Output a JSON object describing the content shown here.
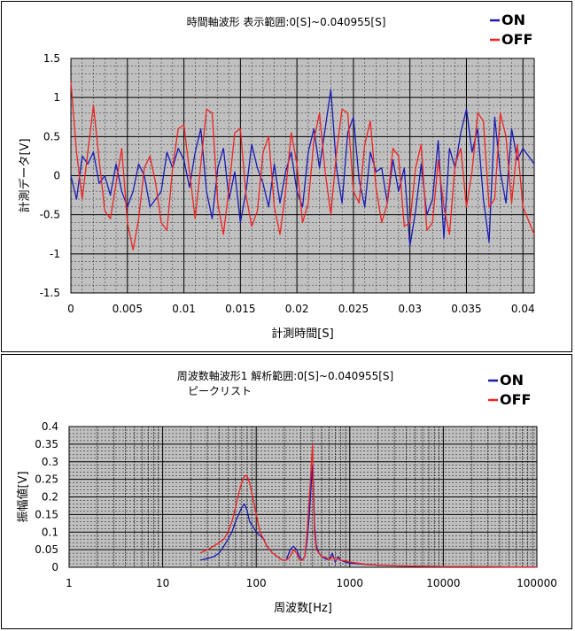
{
  "colors": {
    "on": "#1a1ab4",
    "off": "#ee2222",
    "plot_bg": "#c0c0c0",
    "grid_major": "#000000",
    "grid_minor": "#000000"
  },
  "chart_data": [
    {
      "type": "line",
      "title": "時間軸波形 表示範囲:0[S]~0.040955[S]",
      "xlabel": "計測時間[S]",
      "ylabel": "計測データ[V]",
      "xlim": [
        0,
        0.041
      ],
      "ylim": [
        -1.5,
        1.5
      ],
      "x_ticks": [
        0,
        0.005,
        0.01,
        0.015,
        0.02,
        0.025,
        0.03,
        0.035,
        0.04
      ],
      "x_tick_labels": [
        "0",
        "0.005",
        "0.01",
        "0.015",
        "0.02",
        "0.025",
        "0.03",
        "0.035",
        "0.04"
      ],
      "y_ticks": [
        1.5,
        1,
        0.5,
        0,
        -0.5,
        -1,
        -1.5
      ],
      "y_tick_labels": [
        "1.5",
        "1",
        "0.5",
        "0",
        "-0.5",
        "-1",
        "-1.5"
      ],
      "grid": true,
      "legend": "top-right",
      "legend_entries": [
        "ON",
        "OFF"
      ],
      "series": [
        {
          "name": "ON",
          "x": [
            0,
            0.0005,
            0.001,
            0.0015,
            0.002,
            0.0025,
            0.003,
            0.0035,
            0.004,
            0.0045,
            0.005,
            0.0055,
            0.006,
            0.0065,
            0.007,
            0.0075,
            0.008,
            0.0085,
            0.009,
            0.0095,
            0.01,
            0.0105,
            0.011,
            0.0115,
            0.012,
            0.0125,
            0.013,
            0.0135,
            0.014,
            0.0145,
            0.015,
            0.0155,
            0.016,
            0.0165,
            0.017,
            0.0175,
            0.018,
            0.0185,
            0.019,
            0.0195,
            0.02,
            0.0205,
            0.021,
            0.0215,
            0.022,
            0.0225,
            0.023,
            0.0235,
            0.024,
            0.0245,
            0.025,
            0.0255,
            0.026,
            0.0265,
            0.027,
            0.0275,
            0.028,
            0.0285,
            0.029,
            0.0295,
            0.03,
            0.0305,
            0.031,
            0.0315,
            0.032,
            0.0325,
            0.033,
            0.0335,
            0.034,
            0.0345,
            0.035,
            0.0355,
            0.036,
            0.0365,
            0.037,
            0.0375,
            0.038,
            0.0385,
            0.039,
            0.0395,
            0.04,
            0.041
          ],
          "y": [
            0,
            -0.3,
            0.25,
            0.15,
            0.3,
            -0.1,
            0,
            -0.25,
            0.15,
            -0.2,
            -0.4,
            -0.2,
            0.15,
            0,
            -0.4,
            -0.3,
            -0.2,
            0.3,
            0.1,
            0.35,
            0.2,
            -0.15,
            0.3,
            0.6,
            -0.2,
            -0.55,
            0.1,
            0.35,
            -0.3,
            0.05,
            -0.6,
            -0.2,
            0.4,
            0.1,
            -0.1,
            -0.4,
            0.15,
            -0.35,
            0.05,
            0.3,
            -0.2,
            -0.4,
            0.3,
            0.6,
            0.1,
            0.6,
            1.1,
            0.1,
            -0.35,
            0.55,
            0.75,
            -0.05,
            -0.4,
            0.3,
            0.05,
            0.1,
            -0.35,
            0.2,
            -0.2,
            0.1,
            -0.9,
            -0.45,
            0.15,
            -0.5,
            -0.3,
            0.45,
            -0.8,
            0.35,
            0.1,
            0.55,
            0.85,
            0.3,
            0.6,
            -0.3,
            -0.85,
            0.75,
            0.05,
            -0.35,
            0.6,
            0.2,
            0.35,
            0.15
          ]
        },
        {
          "name": "OFF",
          "x": [
            0,
            0.0005,
            0.001,
            0.0015,
            0.002,
            0.0025,
            0.003,
            0.0035,
            0.004,
            0.0045,
            0.005,
            0.0055,
            0.006,
            0.0065,
            0.007,
            0.0075,
            0.008,
            0.0085,
            0.009,
            0.0095,
            0.01,
            0.0105,
            0.011,
            0.0115,
            0.012,
            0.0125,
            0.013,
            0.0135,
            0.014,
            0.0145,
            0.015,
            0.0155,
            0.016,
            0.0165,
            0.017,
            0.0175,
            0.018,
            0.0185,
            0.019,
            0.0195,
            0.02,
            0.0205,
            0.021,
            0.0215,
            0.022,
            0.0225,
            0.023,
            0.0235,
            0.024,
            0.0245,
            0.025,
            0.0255,
            0.026,
            0.0265,
            0.027,
            0.0275,
            0.028,
            0.0285,
            0.029,
            0.0295,
            0.03,
            0.0305,
            0.031,
            0.0315,
            0.032,
            0.0325,
            0.033,
            0.0335,
            0.034,
            0.0345,
            0.035,
            0.0355,
            0.036,
            0.0365,
            0.037,
            0.0375,
            0.038,
            0.0385,
            0.039,
            0.0395,
            0.04,
            0.041
          ],
          "y": [
            1.2,
            0.3,
            -0.3,
            0.3,
            0.9,
            0.2,
            -0.45,
            -0.55,
            -0.1,
            0.35,
            -0.6,
            -0.95,
            -0.55,
            0.1,
            0.25,
            -0.1,
            -0.6,
            -0.7,
            0.1,
            0.6,
            0.65,
            0.05,
            -0.55,
            0.15,
            0.85,
            0.8,
            -0.35,
            -0.75,
            -0.15,
            0.55,
            0.6,
            -0.25,
            -0.65,
            -0.45,
            0.3,
            0.5,
            -0.4,
            -0.75,
            -0.2,
            0.55,
            0.15,
            -0.6,
            -0.35,
            0.45,
            0.8,
            0.05,
            -0.5,
            0.3,
            0.85,
            0.8,
            -0.2,
            -0.35,
            0.4,
            0.7,
            -0.15,
            -0.6,
            -0.35,
            0.35,
            0.25,
            -0.65,
            -0.6,
            0.1,
            0.4,
            -0.7,
            -0.6,
            0.2,
            -0.4,
            -0.75,
            0.15,
            0.35,
            -0.4,
            0.05,
            0.8,
            0.7,
            -0.4,
            -0.3,
            0.8,
            0.5,
            -0.35,
            0.4,
            -0.4,
            -0.75
          ]
        }
      ]
    },
    {
      "type": "line",
      "title": "周波数軸波形1 解析範囲:0[S]~0.040955[S]",
      "subtitle": "ピークリスト",
      "xlabel": "周波数[Hz]",
      "ylabel": "振幅値[V]",
      "x_scale": "log",
      "xlim": [
        1,
        100000
      ],
      "ylim": [
        0,
        0.4
      ],
      "x_ticks": [
        1,
        10,
        100,
        1000,
        10000,
        100000
      ],
      "x_tick_labels": [
        "1",
        "10",
        "100",
        "1000",
        "10000",
        "100000"
      ],
      "y_ticks": [
        0.4,
        0.35,
        0.3,
        0.25,
        0.2,
        0.15,
        0.1,
        0.05,
        0
      ],
      "y_tick_labels": [
        "0.4",
        "0.35",
        "0.3",
        "0.25",
        "0.2",
        "0.15",
        "0.1",
        "0.05",
        "0"
      ],
      "grid": true,
      "legend": "top-right",
      "legend_entries": [
        "ON",
        "OFF"
      ],
      "series": [
        {
          "name": "ON",
          "x": [
            25,
            30,
            35,
            40,
            45,
            50,
            55,
            60,
            65,
            70,
            75,
            80,
            85,
            90,
            100,
            110,
            120,
            130,
            150,
            170,
            190,
            210,
            230,
            250,
            270,
            290,
            310,
            330,
            350,
            370,
            390,
            400,
            410,
            420,
            440,
            470,
            500,
            550,
            600,
            650,
            700,
            750,
            800,
            900,
            1000,
            1200,
            1500,
            2000,
            3000,
            5000,
            10000,
            20000,
            50000,
            100000
          ],
          "x_note": "",
          "y": [
            0.02,
            0.025,
            0.03,
            0.04,
            0.06,
            0.08,
            0.1,
            0.13,
            0.15,
            0.17,
            0.18,
            0.16,
            0.13,
            0.12,
            0.1,
            0.09,
            0.08,
            0.06,
            0.04,
            0.03,
            0.02,
            0.02,
            0.05,
            0.06,
            0.05,
            0.03,
            0.02,
            0.03,
            0.08,
            0.15,
            0.25,
            0.29,
            0.22,
            0.12,
            0.06,
            0.04,
            0.03,
            0.025,
            0.02,
            0.04,
            0.015,
            0.03,
            0.02,
            0.015,
            0.012,
            0.01,
            0.008,
            0.006,
            0.004,
            0.003,
            0.002,
            0.002,
            0.001,
            0.001
          ]
        },
        {
          "name": "OFF",
          "x": [
            25,
            30,
            35,
            40,
            45,
            50,
            55,
            60,
            65,
            70,
            75,
            80,
            85,
            90,
            100,
            110,
            120,
            130,
            150,
            170,
            190,
            210,
            230,
            250,
            270,
            290,
            310,
            330,
            350,
            370,
            390,
            400,
            410,
            420,
            440,
            470,
            500,
            550,
            600,
            650,
            700,
            750,
            800,
            900,
            1000,
            1200,
            1500,
            2000,
            3000,
            5000,
            10000,
            20000,
            50000,
            100000
          ],
          "y": [
            0.04,
            0.05,
            0.06,
            0.07,
            0.08,
            0.1,
            0.13,
            0.17,
            0.21,
            0.24,
            0.26,
            0.26,
            0.24,
            0.21,
            0.15,
            0.1,
            0.08,
            0.06,
            0.04,
            0.03,
            0.02,
            0.02,
            0.03,
            0.05,
            0.04,
            0.02,
            0.02,
            0.03,
            0.1,
            0.2,
            0.3,
            0.35,
            0.2,
            0.1,
            0.05,
            0.04,
            0.03,
            0.03,
            0.02,
            0.03,
            0.02,
            0.025,
            0.02,
            0.018,
            0.015,
            0.012,
            0.008,
            0.006,
            0.004,
            0.003,
            0.002,
            0.002,
            0.001,
            0.001
          ]
        }
      ]
    }
  ]
}
